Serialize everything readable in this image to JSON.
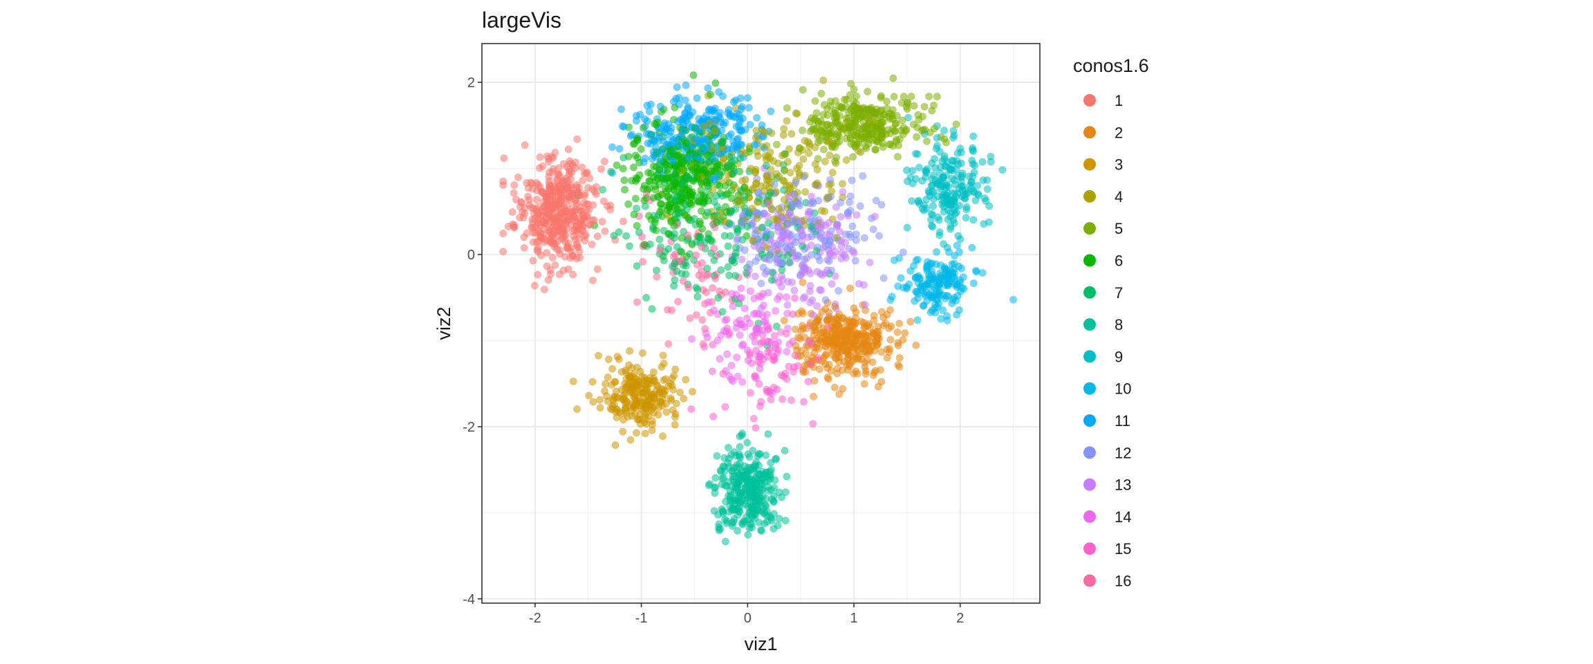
{
  "chart_data": {
    "type": "scatter",
    "title": "largeVis",
    "xlabel": "viz1",
    "ylabel": "viz2",
    "xlim": [
      -2.5,
      2.75
    ],
    "ylim": [
      -4.05,
      2.45
    ],
    "x_ticks": [
      -2,
      -1,
      0,
      1,
      2
    ],
    "x_tick_labels": [
      "-2",
      "-1",
      "0",
      "1",
      "2"
    ],
    "y_ticks": [
      -4,
      -2,
      0,
      2
    ],
    "y_tick_labels": [
      "-4",
      "-2",
      "0",
      "2"
    ],
    "grid": true,
    "legend_title": "conos1.6",
    "legend_position": "right",
    "point_alpha": 0.55,
    "series": [
      {
        "name": "1",
        "color": "#F8766D",
        "center": [
          -1.8,
          0.5
        ],
        "spread": [
          0.35,
          0.55
        ],
        "count": 420
      },
      {
        "name": "2",
        "color": "#E68613",
        "center": [
          0.9,
          -1.0
        ],
        "spread": [
          0.45,
          0.35
        ],
        "count": 360
      },
      {
        "name": "3",
        "color": "#CD9600",
        "center": [
          -1.0,
          -1.65
        ],
        "spread": [
          0.35,
          0.35
        ],
        "count": 230
      },
      {
        "name": "4",
        "color": "#ABA300",
        "center": [
          0.2,
          0.9
        ],
        "spread": [
          0.7,
          0.6
        ],
        "count": 200
      },
      {
        "name": "5",
        "color": "#7CAE00",
        "center": [
          1.1,
          1.5
        ],
        "spread": [
          0.5,
          0.35
        ],
        "count": 300
      },
      {
        "name": "6",
        "color": "#0CB702",
        "center": [
          -0.6,
          0.9
        ],
        "spread": [
          0.45,
          0.6
        ],
        "count": 360
      },
      {
        "name": "7",
        "color": "#00BE67",
        "center": [
          -0.3,
          0.3
        ],
        "spread": [
          0.8,
          0.8
        ],
        "count": 200
      },
      {
        "name": "8",
        "color": "#00C19A",
        "center": [
          0.0,
          -2.75
        ],
        "spread": [
          0.28,
          0.45
        ],
        "count": 300
      },
      {
        "name": "9",
        "color": "#00BFC4",
        "center": [
          1.9,
          0.8
        ],
        "spread": [
          0.3,
          0.45
        ],
        "count": 200
      },
      {
        "name": "10",
        "color": "#00B8E7",
        "center": [
          1.8,
          -0.35
        ],
        "spread": [
          0.3,
          0.35
        ],
        "count": 160
      },
      {
        "name": "11",
        "color": "#00A9FF",
        "center": [
          -0.5,
          1.4
        ],
        "spread": [
          0.6,
          0.4
        ],
        "count": 260
      },
      {
        "name": "12",
        "color": "#8494FF",
        "center": [
          0.5,
          0.3
        ],
        "spread": [
          0.6,
          0.6
        ],
        "count": 150
      },
      {
        "name": "13",
        "color": "#C77CFF",
        "center": [
          0.5,
          0.0
        ],
        "spread": [
          0.5,
          0.6
        ],
        "count": 150
      },
      {
        "name": "14",
        "color": "#ED68ED",
        "center": [
          0.0,
          -0.9
        ],
        "spread": [
          0.4,
          0.5
        ],
        "count": 90
      },
      {
        "name": "15",
        "color": "#FF61CC",
        "center": [
          0.2,
          -1.3
        ],
        "spread": [
          0.4,
          0.6
        ],
        "count": 70
      },
      {
        "name": "16",
        "color": "#FF68A1",
        "center": [
          -0.5,
          -0.2
        ],
        "spread": [
          0.5,
          0.6
        ],
        "count": 60
      }
    ]
  }
}
